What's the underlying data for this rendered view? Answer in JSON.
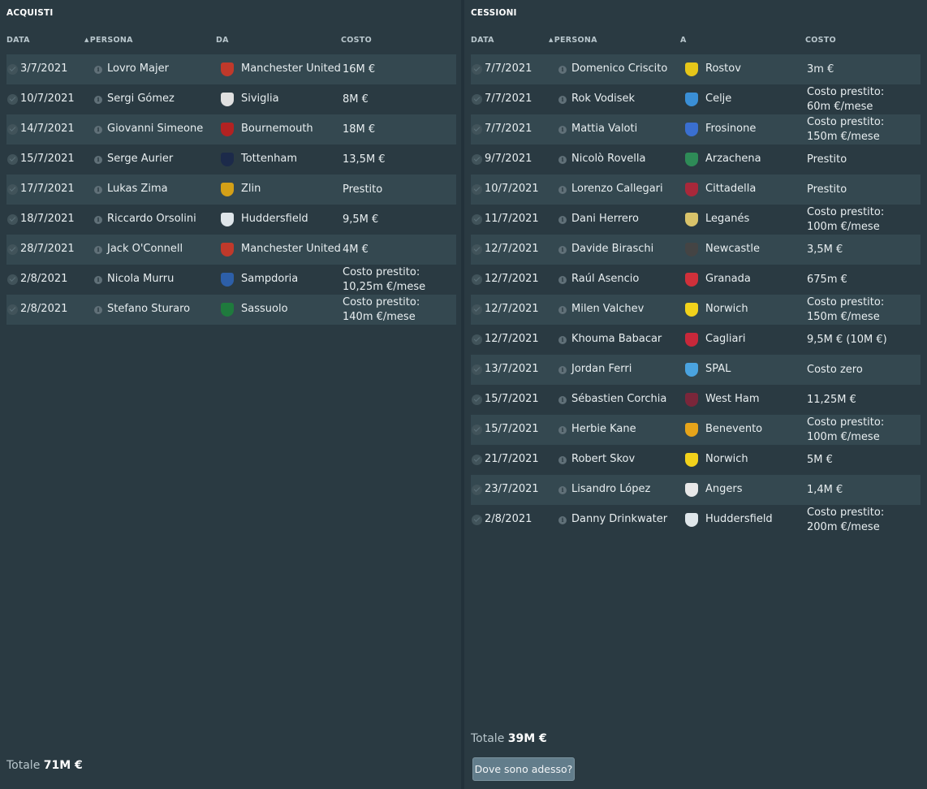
{
  "acquisti": {
    "title": "ACQUISTI",
    "headers": {
      "data": "DATA",
      "persona": "PERSONA",
      "club": "DA",
      "costo": "COSTO"
    },
    "rows": [
      {
        "date": "3/7/2021",
        "person": "Lovro Majer",
        "club": "Manchester United",
        "cost": "16M €",
        "crest": "#c0392b"
      },
      {
        "date": "10/7/2021",
        "person": "Sergi Gómez",
        "club": "Siviglia",
        "cost": "8M €",
        "crest": "#e0e0e0"
      },
      {
        "date": "14/7/2021",
        "person": "Giovanni Simeone",
        "club": "Bournemouth",
        "cost": "18M €",
        "crest": "#b22222"
      },
      {
        "date": "15/7/2021",
        "person": "Serge Aurier",
        "club": "Tottenham",
        "cost": "13,5M €",
        "crest": "#1c2a4a"
      },
      {
        "date": "17/7/2021",
        "person": "Lukas Zima",
        "club": "Zlin",
        "cost": "Prestito",
        "crest": "#d4a017"
      },
      {
        "date": "18/7/2021",
        "person": "Riccardo Orsolini",
        "club": "Huddersfield",
        "cost": "9,5M €",
        "crest": "#dfe6ea"
      },
      {
        "date": "28/7/2021",
        "person": "Jack O'Connell",
        "club": "Manchester United",
        "cost": "4M €",
        "crest": "#c0392b"
      },
      {
        "date": "2/8/2021",
        "person": "Nicola Murru",
        "club": "Sampdoria",
        "cost": "Costo prestito:",
        "cost2": "10,25m €/mese",
        "crest": "#2d5fa8"
      },
      {
        "date": "2/8/2021",
        "person": "Stefano Sturaro",
        "club": "Sassuolo",
        "cost": "Costo prestito:",
        "cost2": "140m €/mese",
        "crest": "#1f7a3d"
      }
    ],
    "total_label": "Totale",
    "total_value": "71M €"
  },
  "cessioni": {
    "title": "CESSIONI",
    "headers": {
      "data": "DATA",
      "persona": "PERSONA",
      "club": "A",
      "costo": "COSTO"
    },
    "rows": [
      {
        "date": "7/7/2021",
        "person": "Domenico Criscito",
        "club": "Rostov",
        "cost": "3m €",
        "crest": "#e6c619"
      },
      {
        "date": "7/7/2021",
        "person": "Rok Vodisek",
        "club": "Celje",
        "cost": "Costo prestito:",
        "cost2": "60m €/mese",
        "crest": "#3a8fd6"
      },
      {
        "date": "7/7/2021",
        "person": "Mattia Valoti",
        "club": "Frosinone",
        "cost": "Costo prestito:",
        "cost2": "150m €/mese",
        "crest": "#3a6fd0"
      },
      {
        "date": "9/7/2021",
        "person": "Nicolò Rovella",
        "club": "Arzachena",
        "cost": "Prestito",
        "crest": "#2e8b57"
      },
      {
        "date": "10/7/2021",
        "person": "Lorenzo Callegari",
        "club": "Cittadella",
        "cost": "Prestito",
        "crest": "#a8283a"
      },
      {
        "date": "11/7/2021",
        "person": "Dani Herrero",
        "club": "Leganés",
        "cost": "Costo prestito:",
        "cost2": "100m €/mese",
        "crest": "#d9c36a"
      },
      {
        "date": "12/7/2021",
        "person": "Davide Biraschi",
        "club": "Newcastle",
        "cost": "3,5M €",
        "crest": "#444444"
      },
      {
        "date": "12/7/2021",
        "person": "Raúl Asencio",
        "club": "Granada",
        "cost": "675m €",
        "crest": "#d0303a"
      },
      {
        "date": "12/7/2021",
        "person": "Milen Valchev",
        "club": "Norwich",
        "cost": "Costo prestito:",
        "cost2": "150m €/mese",
        "crest": "#f2d21b"
      },
      {
        "date": "12/7/2021",
        "person": "Khouma Babacar",
        "club": "Cagliari",
        "cost": "9,5M € (10M €)",
        "crest": "#c8283a"
      },
      {
        "date": "13/7/2021",
        "person": "Jordan Ferri",
        "club": "SPAL",
        "cost": "Costo zero",
        "crest": "#4aa3df"
      },
      {
        "date": "15/7/2021",
        "person": "Sébastien Corchia",
        "club": "West Ham",
        "cost": "11,25M €",
        "crest": "#7a263a"
      },
      {
        "date": "15/7/2021",
        "person": "Herbie Kane",
        "club": "Benevento",
        "cost": "Costo prestito:",
        "cost2": "100m €/mese",
        "crest": "#e6a41a"
      },
      {
        "date": "21/7/2021",
        "person": "Robert Skov",
        "club": "Norwich",
        "cost": "5M €",
        "crest": "#f2d21b"
      },
      {
        "date": "23/7/2021",
        "person": "Lisandro López",
        "club": "Angers",
        "cost": "1,4M €",
        "crest": "#e8e8e8"
      },
      {
        "date": "2/8/2021",
        "person": "Danny Drinkwater",
        "club": "Huddersfield",
        "cost": "Costo prestito:",
        "cost2": "200m €/mese",
        "crest": "#dfe6ea"
      }
    ],
    "total_label": "Totale",
    "total_value": "39M €",
    "button_label": "Dove sono adesso?"
  }
}
